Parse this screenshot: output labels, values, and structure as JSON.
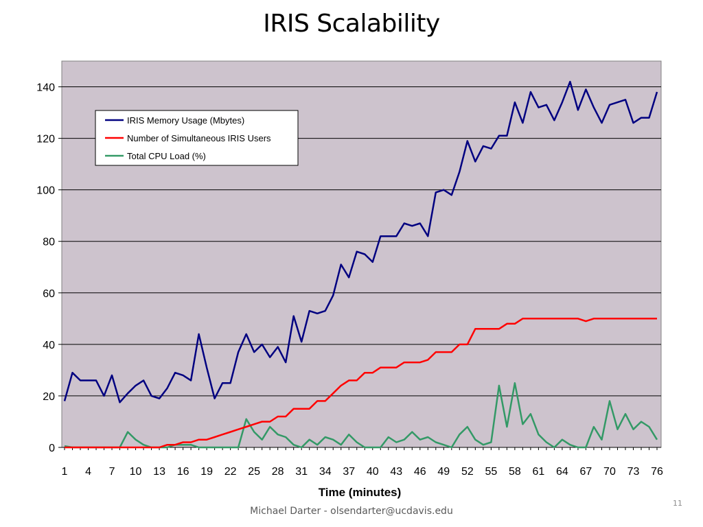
{
  "slide": {
    "title": "IRIS Scalability",
    "footer": "Michael Darter - olsendarter@ucdavis.edu",
    "page_number": "11"
  },
  "chart_data": {
    "type": "line",
    "title": "",
    "xlabel": "Time (minutes)",
    "ylabel": "",
    "x": [
      1,
      2,
      3,
      4,
      5,
      6,
      7,
      8,
      9,
      10,
      11,
      12,
      13,
      14,
      15,
      16,
      17,
      18,
      19,
      20,
      21,
      22,
      23,
      24,
      25,
      26,
      27,
      28,
      29,
      30,
      31,
      32,
      33,
      34,
      35,
      36,
      37,
      38,
      39,
      40,
      41,
      42,
      43,
      44,
      45,
      46,
      47,
      48,
      49,
      50,
      51,
      52,
      53,
      54,
      55,
      56,
      57,
      58,
      59,
      60,
      61,
      62,
      63,
      64,
      65,
      66,
      67,
      68,
      69,
      70,
      71,
      72,
      73,
      74,
      75,
      76
    ],
    "x_tick_labels": [
      "1",
      "4",
      "7",
      "10",
      "13",
      "16",
      "19",
      "22",
      "25",
      "28",
      "31",
      "34",
      "37",
      "40",
      "43",
      "46",
      "49",
      "52",
      "55",
      "58",
      "61",
      "64",
      "67",
      "70",
      "73",
      "76"
    ],
    "y_ticks": [
      0,
      20,
      40,
      60,
      80,
      100,
      120,
      140
    ],
    "ylim": [
      0,
      150
    ],
    "grid": "horizontal",
    "legend_position": "top-left",
    "background": "#cdc3cd",
    "series": [
      {
        "name": "IRIS Memory Usage (Mbytes)",
        "color": "#000080",
        "values": [
          18,
          29,
          26,
          26,
          26,
          20,
          28,
          17.5,
          21,
          24,
          26,
          20,
          19,
          23,
          29,
          28,
          26,
          44,
          31,
          19,
          25,
          25,
          37,
          44,
          37,
          40,
          35,
          39,
          33,
          51,
          41,
          53,
          52,
          53,
          59,
          71,
          66,
          76,
          75,
          72,
          82,
          82,
          82,
          87,
          86,
          87,
          82,
          99,
          100,
          98,
          107,
          119,
          111,
          117,
          116,
          121,
          121,
          134,
          126,
          138,
          132,
          133,
          127,
          134,
          142,
          131,
          139,
          132,
          126,
          133,
          134,
          135,
          126,
          128,
          128,
          138
        ]
      },
      {
        "name": "Number of Simultaneous IRIS Users",
        "color": "#ff0000",
        "values": [
          0,
          0,
          0,
          0,
          0,
          0,
          0,
          0,
          0,
          0,
          0,
          0,
          0,
          1,
          1,
          2,
          2,
          3,
          3,
          4,
          5,
          6,
          7,
          8,
          9,
          10,
          10,
          12,
          12,
          15,
          15,
          15,
          18,
          18,
          21,
          24,
          26,
          26,
          29,
          29,
          31,
          31,
          31,
          33,
          33,
          33,
          34,
          37,
          37,
          37,
          40,
          40,
          46,
          46,
          46,
          46,
          48,
          48,
          50,
          50,
          50,
          50,
          50,
          50,
          50,
          50,
          49,
          50,
          50,
          50,
          50,
          50,
          50,
          50,
          50,
          50
        ]
      },
      {
        "name": "Total CPU Load (%)",
        "color": "#339966",
        "values": [
          0.5,
          0,
          0,
          0,
          0,
          0,
          0,
          0,
          6,
          3,
          1,
          0,
          0,
          0,
          1,
          1,
          1,
          0,
          0,
          0,
          0,
          0,
          0,
          11,
          6,
          3,
          8,
          5,
          4,
          1,
          0,
          3,
          1,
          4,
          3,
          1,
          5,
          2,
          0,
          0,
          0,
          4,
          2,
          3,
          6,
          3,
          4,
          2,
          1,
          0,
          5,
          8,
          3,
          1,
          2,
          24,
          8,
          25,
          9,
          13,
          5,
          2,
          0,
          3,
          1,
          0,
          0,
          8,
          3,
          18,
          7,
          13,
          7,
          10,
          8,
          3
        ]
      }
    ]
  }
}
